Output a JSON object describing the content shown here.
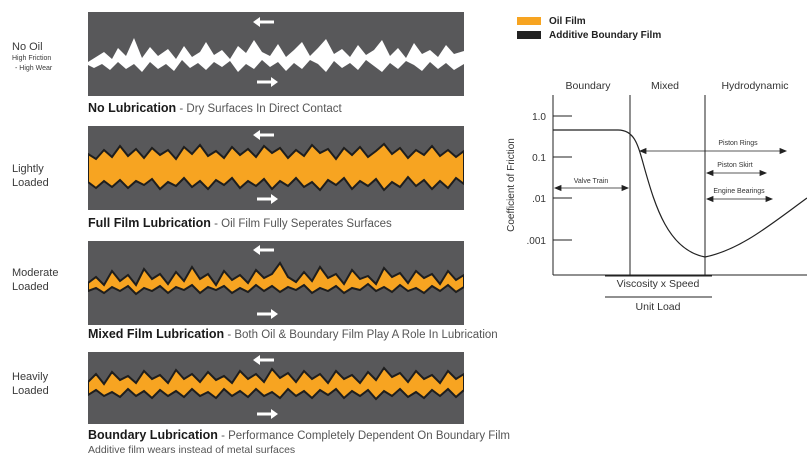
{
  "panels": [
    {
      "side_label_1": "No Oil",
      "side_label_2": "High Friction",
      "side_label_3": "- High Wear",
      "title": "No Lubrication",
      "desc": " - Dry Surfaces In Direct Contact"
    },
    {
      "side_label_1": "Lightly",
      "side_label_2": "Loaded",
      "title": "Full Film Lubrication",
      "desc": " - Oil Film Fully Seperates Surfaces"
    },
    {
      "side_label_1": "Moderate",
      "side_label_2": "Loaded",
      "title": "Mixed Film Lubrication",
      "desc": " - Both Oil & Boundary Film Play A Role In Lubrication"
    },
    {
      "side_label_1": "Heavily",
      "side_label_2": "Loaded",
      "title": "Boundary Lubrication",
      "desc": " - Performance Completely Dependent On Boundary Film"
    }
  ],
  "footnote": "Additive film wears instead of metal surfaces",
  "legend": {
    "items": [
      {
        "label": "Oil Film",
        "color": "#F7A421"
      },
      {
        "label": "Additive Boundary Film",
        "color": "#222222"
      }
    ]
  },
  "stribeck": {
    "regions": [
      "Boundary",
      "Mixed",
      "Hydrodynamic"
    ],
    "y_ticks": [
      "1.0",
      "0.1",
      ".01",
      ".001"
    ],
    "ylabel": "Coefficient of Friction",
    "xlabel_top": "Viscosity x Speed",
    "xlabel_bottom": "Unit Load",
    "annotations": [
      "Valve Train",
      "Piston Rings",
      "Piston Skirt",
      "Engine Bearings"
    ]
  },
  "colors": {
    "surface": "#58585A",
    "oil": "#F7A421",
    "film": "#222222"
  }
}
